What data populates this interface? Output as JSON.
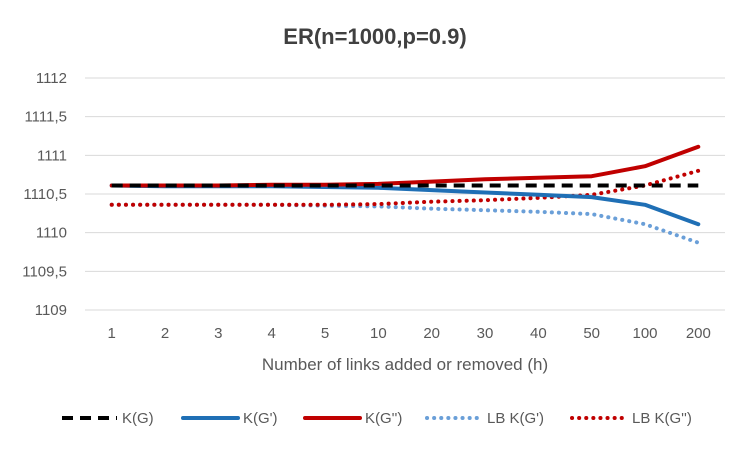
{
  "chart_data": {
    "type": "line",
    "title": "ER(n=1000,p=0.9)",
    "xlabel": "Number of links added or removed (h)",
    "ylabel": "",
    "categories": [
      "1",
      "2",
      "3",
      "4",
      "5",
      "10",
      "20",
      "30",
      "40",
      "50",
      "100",
      "200"
    ],
    "ylim": [
      1109,
      1112
    ],
    "yticks": [
      "1109",
      "1109,5",
      "1110",
      "1110,5",
      "1111",
      "1111,5",
      "1112"
    ],
    "ytick_values": [
      1109,
      1109.5,
      1110,
      1110.5,
      1111,
      1111.5,
      1112
    ],
    "grid": "horizontal",
    "legend_position": "bottom",
    "series": [
      {
        "name": "K(G)",
        "color": "#000000",
        "style": "dashed",
        "values": [
          1110.61,
          1110.61,
          1110.61,
          1110.61,
          1110.61,
          1110.61,
          1110.61,
          1110.61,
          1110.61,
          1110.61,
          1110.61,
          1110.61
        ]
      },
      {
        "name": "K(G')",
        "color": "#1F6FB5",
        "style": "solid",
        "values": [
          1110.61,
          1110.6,
          1110.6,
          1110.6,
          1110.59,
          1110.58,
          1110.55,
          1110.52,
          1110.49,
          1110.46,
          1110.36,
          1110.11
        ]
      },
      {
        "name": "K(G'')",
        "color": "#C00000",
        "style": "solid",
        "values": [
          1110.61,
          1110.61,
          1110.61,
          1110.62,
          1110.62,
          1110.63,
          1110.66,
          1110.69,
          1110.71,
          1110.73,
          1110.86,
          1111.11
        ]
      },
      {
        "name": "LB K(G')",
        "color": "#6A9FD8",
        "style": "dotted",
        "values": [
          1110.36,
          1110.36,
          1110.36,
          1110.36,
          1110.35,
          1110.34,
          1110.31,
          1110.29,
          1110.27,
          1110.24,
          1110.11,
          1109.87
        ]
      },
      {
        "name": "LB K(G'')",
        "color": "#C00000",
        "style": "dotted",
        "values": [
          1110.36,
          1110.36,
          1110.36,
          1110.36,
          1110.36,
          1110.37,
          1110.4,
          1110.42,
          1110.45,
          1110.49,
          1110.61,
          1110.8
        ]
      }
    ]
  }
}
